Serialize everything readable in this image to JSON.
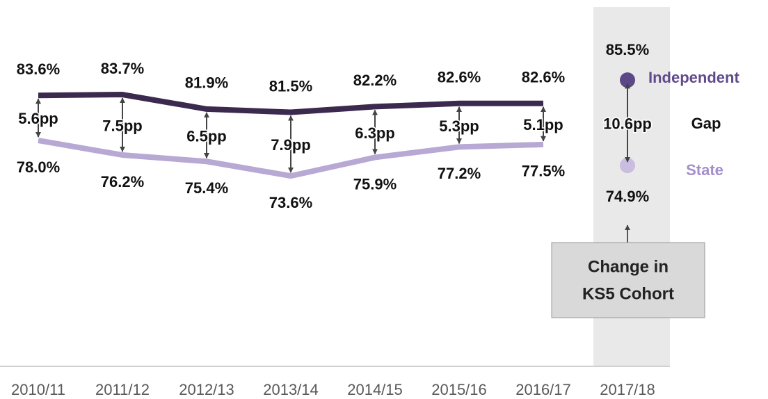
{
  "chart_data": {
    "type": "line",
    "categories": [
      "2010/11",
      "2011/12",
      "2012/13",
      "2013/14",
      "2014/15",
      "2015/16",
      "2016/17",
      "2017/18"
    ],
    "series": [
      {
        "name": "Independent",
        "color": "#3b2a4e",
        "point_color": "#5c4787",
        "label_color": "#5f4b8b",
        "values": [
          83.6,
          83.7,
          81.9,
          81.5,
          82.2,
          82.6,
          82.6,
          85.5
        ],
        "value_labels": [
          "83.6%",
          "83.7%",
          "81.9%",
          "81.5%",
          "82.2%",
          "82.6%",
          "82.6%",
          "85.5%"
        ]
      },
      {
        "name": "State",
        "color": "#b8a9d4",
        "point_color": "#c9bde0",
        "label_color": "#a48fcb",
        "values": [
          78.0,
          76.2,
          75.4,
          73.6,
          75.9,
          77.2,
          77.5,
          74.9
        ],
        "value_labels": [
          "78.0%",
          "76.2%",
          "75.4%",
          "73.6%",
          "75.9%",
          "77.2%",
          "77.5%",
          "74.9%"
        ]
      }
    ],
    "gap": {
      "name": "Gap",
      "values": [
        5.6,
        7.5,
        6.5,
        7.9,
        6.3,
        5.3,
        5.1,
        10.6
      ],
      "value_labels": [
        "5.6pp",
        "7.5pp",
        "6.5pp",
        "7.9pp",
        "6.3pp",
        "5.3pp",
        "5.1pp",
        "10.6pp"
      ]
    },
    "annotation": [
      "Change in",
      "KS5 Cohort"
    ],
    "ylim": [
      63,
      90
    ]
  }
}
